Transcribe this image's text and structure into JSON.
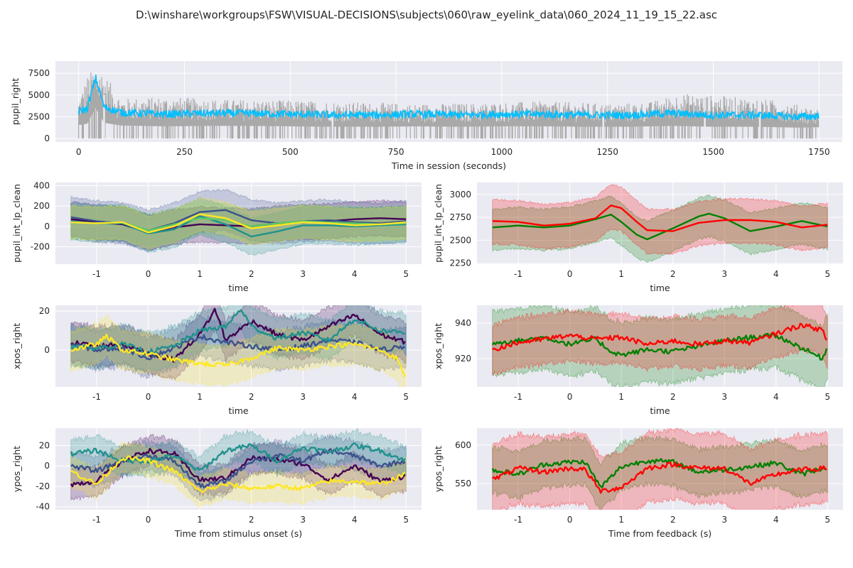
{
  "suptitle": "D:\\winshare\\workgroups\\FSW\\VISUAL-DECISIONS\\subjects\\060\\raw_eyelink_data\\060_2024_11_19_15_22.asc",
  "chart_data": [
    {
      "id": "session",
      "type": "line",
      "xlabel": "Time in session (seconds)",
      "ylabel": "pupil_right",
      "xlim": [
        -55,
        1805
      ],
      "ylim": [
        -400,
        8900
      ],
      "xticks": [
        0,
        250,
        500,
        750,
        1000,
        1250,
        1500,
        1750
      ],
      "yticks": [
        0,
        2500,
        5000,
        7500
      ],
      "grid": true,
      "series": [
        {
          "role": "raw",
          "color": "#a9a9a9",
          "x": [
            0,
            1750
          ],
          "peaks": [
            [
              0,
              4500
            ],
            [
              20,
              7200
            ],
            [
              45,
              8600
            ],
            [
              100,
              4600
            ],
            [
              200,
              4800
            ],
            [
              350,
              4500
            ],
            [
              500,
              4400
            ],
            [
              650,
              4200
            ],
            [
              800,
              4000
            ],
            [
              950,
              4100
            ],
            [
              1100,
              4300
            ],
            [
              1250,
              4000
            ],
            [
              1350,
              4200
            ],
            [
              1420,
              5200
            ],
            [
              1550,
              4800
            ],
            [
              1650,
              4400
            ],
            [
              1750,
              3400
            ]
          ],
          "dropouts": [
            60,
            600,
            1240,
            1480,
            1610
          ]
        },
        {
          "role": "smoothed",
          "color": "#00bfff",
          "x": [
            0,
            20,
            40,
            60,
            100,
            200,
            300,
            400,
            500,
            600,
            700,
            800,
            900,
            1000,
            1100,
            1200,
            1300,
            1400,
            1500,
            1600,
            1700,
            1750
          ],
          "y": [
            3100,
            3400,
            7000,
            3600,
            3000,
            2800,
            2900,
            2900,
            2800,
            2700,
            2700,
            2800,
            2700,
            2800,
            2800,
            2700,
            2700,
            2900,
            2700,
            2700,
            2500,
            2600
          ]
        }
      ]
    },
    {
      "id": "pupil_stim",
      "type": "line",
      "xlabel": "time",
      "ylabel": "pupil_int_lp_clean",
      "xlim": [
        -1.8,
        5.3
      ],
      "ylim": [
        -370,
        430
      ],
      "xticks": [
        -1,
        0,
        1,
        2,
        3,
        4,
        5
      ],
      "yticks": [
        -200,
        0,
        200,
        400
      ],
      "grid": true,
      "series": [
        {
          "color": "#440154",
          "band": 170,
          "x": [
            -1.5,
            -1,
            -0.5,
            0,
            0.5,
            1,
            1.5,
            2,
            2.5,
            3,
            3.5,
            4,
            4.5,
            5
          ],
          "y": [
            70,
            40,
            20,
            -60,
            -10,
            20,
            10,
            0,
            30,
            40,
            50,
            70,
            80,
            70
          ]
        },
        {
          "color": "#3b528b",
          "band": 200,
          "x": [
            -1.5,
            -1,
            -0.5,
            0,
            0.5,
            1,
            1.5,
            2,
            2.5,
            3,
            3.5,
            4,
            4.5,
            5
          ],
          "y": [
            90,
            50,
            30,
            -40,
            30,
            140,
            160,
            60,
            30,
            50,
            60,
            40,
            30,
            50
          ]
        },
        {
          "color": "#21918c",
          "band": 180,
          "x": [
            -1.5,
            -1,
            -0.5,
            0,
            0.5,
            1,
            1.5,
            2,
            2.5,
            3,
            3.5,
            4,
            4.5,
            5
          ],
          "y": [
            50,
            30,
            30,
            -70,
            -30,
            100,
            20,
            -100,
            -50,
            10,
            10,
            0,
            10,
            20
          ]
        },
        {
          "color": "#5ec962",
          "band": 160,
          "x": [
            -1.5,
            -1,
            -0.5,
            0,
            0.5,
            1,
            1.5,
            2,
            2.5,
            3,
            3.5,
            4,
            4.5,
            5
          ],
          "y": [
            40,
            30,
            40,
            -40,
            20,
            80,
            60,
            0,
            30,
            50,
            40,
            30,
            20,
            30
          ]
        },
        {
          "color": "#fde725",
          "band": 160,
          "x": [
            -1.5,
            -1,
            -0.5,
            0,
            0.5,
            1,
            1.5,
            2,
            2.5,
            3,
            3.5,
            4,
            4.5,
            5
          ],
          "y": [
            40,
            30,
            40,
            -60,
            0,
            120,
            80,
            -20,
            10,
            40,
            30,
            10,
            20,
            40
          ]
        }
      ]
    },
    {
      "id": "pupil_fb",
      "type": "line",
      "xlabel": "time",
      "ylabel": "pupil_int_lp_clean",
      "xlim": [
        -1.8,
        5.3
      ],
      "ylim": [
        2240,
        3130
      ],
      "xticks": [
        -1,
        0,
        1,
        2,
        3,
        4,
        5
      ],
      "yticks": [
        2250,
        2500,
        2750,
        3000
      ],
      "grid": true,
      "series": [
        {
          "color": "#008000",
          "band_lo": 250,
          "band_hi": 200,
          "x": [
            -1.5,
            -1,
            -0.5,
            0,
            0.5,
            0.8,
            1,
            1.3,
            1.5,
            2,
            2.5,
            2.7,
            3,
            3.5,
            4,
            4.5,
            5
          ],
          "y": [
            2640,
            2660,
            2640,
            2660,
            2730,
            2780,
            2700,
            2560,
            2510,
            2630,
            2760,
            2790,
            2740,
            2600,
            2650,
            2710,
            2650
          ]
        },
        {
          "color": "#ff0000",
          "band_lo": 250,
          "band_hi": 230,
          "x": [
            -1.5,
            -1,
            -0.5,
            0,
            0.5,
            0.8,
            1,
            1.3,
            1.5,
            2,
            2.5,
            3,
            3.5,
            4,
            4.5,
            5
          ],
          "y": [
            2710,
            2700,
            2660,
            2680,
            2740,
            2880,
            2850,
            2700,
            2610,
            2600,
            2690,
            2720,
            2720,
            2700,
            2640,
            2670
          ]
        }
      ]
    },
    {
      "id": "xpos_stim",
      "type": "line",
      "xlabel": "time",
      "ylabel": "xpos_right",
      "xlim": [
        -1.8,
        5.3
      ],
      "ylim": [
        -19,
        23
      ],
      "xticks": [
        -1,
        0,
        1,
        2,
        3,
        4,
        5
      ],
      "yticks": [
        0,
        20
      ],
      "grid": true,
      "series": [
        {
          "color": "#440154",
          "band": 10,
          "x": [
            -1.5,
            -1,
            -0.5,
            0,
            0.5,
            1,
            1.3,
            1.5,
            2,
            2.5,
            3,
            3.5,
            4,
            4.5,
            5
          ],
          "y": [
            4,
            2,
            3,
            -2,
            -5,
            8,
            21,
            5,
            15,
            8,
            5,
            12,
            18,
            8,
            4
          ]
        },
        {
          "color": "#3b528b",
          "band": 10,
          "x": [
            -1.5,
            -1,
            -0.5,
            0,
            0.5,
            1,
            1.5,
            2,
            2.5,
            3,
            3.5,
            4,
            4.5,
            5
          ],
          "y": [
            3,
            0,
            1,
            -4,
            1,
            7,
            4,
            2,
            0,
            2,
            5,
            4,
            0,
            2
          ]
        },
        {
          "color": "#21918c",
          "band": 10,
          "x": [
            -1.5,
            -1,
            -0.5,
            0,
            0.5,
            1,
            1.5,
            1.8,
            2,
            2.5,
            3,
            3.5,
            4,
            4.5,
            5
          ],
          "y": [
            2,
            1,
            3,
            -1,
            2,
            10,
            12,
            21,
            12,
            6,
            9,
            5,
            16,
            10,
            9
          ]
        },
        {
          "color": "#fde725",
          "band": 10,
          "x": [
            -1.5,
            -1,
            -0.8,
            -0.5,
            0,
            0.5,
            1,
            1.5,
            2,
            2.5,
            3,
            3.5,
            4,
            4.5,
            4.8,
            5
          ],
          "y": [
            0,
            3,
            7,
            0,
            -2,
            -5,
            -7,
            -8,
            -4,
            1,
            0,
            2,
            3,
            0,
            -4,
            -14
          ]
        }
      ]
    },
    {
      "id": "xpos_fb",
      "type": "line",
      "xlabel": "time",
      "ylabel": "xpos_right",
      "xlim": [
        -1.8,
        5.3
      ],
      "ylim": [
        904,
        950
      ],
      "xticks": [
        -1,
        0,
        1,
        2,
        3,
        4,
        5
      ],
      "yticks": [
        920,
        940
      ],
      "grid": true,
      "series": [
        {
          "color": "#008000",
          "band": 18,
          "x": [
            -1.5,
            -1,
            -0.5,
            0,
            0.5,
            0.8,
            1,
            1.5,
            2,
            2.5,
            3,
            3.5,
            4,
            4.5,
            4.9,
            5
          ],
          "y": [
            929,
            930,
            932,
            928,
            931,
            924,
            922,
            925,
            924,
            927,
            930,
            932,
            933,
            926,
            920,
            927
          ]
        },
        {
          "color": "#ff0000",
          "band": 14,
          "x": [
            -1.5,
            -1,
            -0.5,
            0,
            0.5,
            1,
            1.5,
            2,
            2.5,
            3,
            3.5,
            4,
            4.5,
            4.9,
            5
          ],
          "y": [
            925,
            929,
            931,
            933,
            931,
            932,
            928,
            930,
            928,
            930,
            929,
            934,
            939,
            936,
            928
          ]
        }
      ]
    },
    {
      "id": "ypos_stim",
      "type": "line",
      "xlabel": "Time from stimulus onset (s)",
      "ylabel": "ypos_right",
      "xlim": [
        -1.8,
        5.3
      ],
      "ylim": [
        -43,
        37
      ],
      "xticks": [
        -1,
        0,
        1,
        2,
        3,
        4,
        5
      ],
      "yticks": [
        -40,
        -20,
        0,
        20
      ],
      "grid": true,
      "series": [
        {
          "color": "#440154",
          "band": 14,
          "x": [
            -1.5,
            -1,
            -0.5,
            0,
            0.5,
            1,
            1.5,
            2,
            2.5,
            3,
            3.5,
            4,
            4.5,
            5
          ],
          "y": [
            -18,
            -15,
            5,
            15,
            12,
            -14,
            -12,
            8,
            6,
            2,
            -14,
            0,
            -15,
            -10
          ]
        },
        {
          "color": "#3b528b",
          "band": 14,
          "x": [
            -1.5,
            -1,
            -0.5,
            0,
            0.5,
            1,
            1.5,
            2,
            2.5,
            3,
            3.5,
            4,
            4.5,
            5
          ],
          "y": [
            0,
            -5,
            5,
            10,
            5,
            -20,
            -15,
            5,
            10,
            5,
            15,
            10,
            0,
            5
          ]
        },
        {
          "color": "#21918c",
          "band": 14,
          "x": [
            -1.5,
            -1,
            -0.5,
            0,
            0.5,
            1,
            1.5,
            2,
            2.5,
            3,
            3.5,
            4,
            4.5,
            5
          ],
          "y": [
            12,
            15,
            5,
            5,
            10,
            -5,
            15,
            20,
            5,
            18,
            14,
            20,
            15,
            5
          ]
        },
        {
          "color": "#fde725",
          "band": 14,
          "x": [
            -1.5,
            -1,
            -0.5,
            0,
            0.5,
            1,
            1.5,
            2,
            2.5,
            3,
            3.5,
            4,
            4.5,
            5
          ],
          "y": [
            -5,
            -18,
            8,
            5,
            -5,
            -25,
            -18,
            -22,
            -20,
            -22,
            -15,
            -15,
            -18,
            -8
          ]
        }
      ]
    },
    {
      "id": "ypos_fb",
      "type": "line",
      "xlabel": "Time from feedback (s)",
      "ylabel": "ypos_right",
      "xlim": [
        -1.8,
        5.3
      ],
      "ylim": [
        516,
        622
      ],
      "xticks": [
        -1,
        0,
        1,
        2,
        3,
        4,
        5
      ],
      "yticks": [
        550,
        600
      ],
      "grid": true,
      "series": [
        {
          "color": "#008000",
          "band": 30,
          "x": [
            -1.5,
            -1,
            -0.5,
            0,
            0.3,
            0.6,
            1,
            1.5,
            2,
            2.5,
            3,
            3.5,
            4,
            4.5,
            5
          ],
          "y": [
            568,
            562,
            575,
            578,
            578,
            545,
            572,
            580,
            578,
            565,
            568,
            572,
            577,
            562,
            572
          ]
        },
        {
          "color": "#ff0000",
          "band": 45,
          "x": [
            -1.5,
            -1,
            -0.5,
            0,
            0.3,
            0.6,
            1,
            1.5,
            2,
            2.5,
            3,
            3.5,
            4,
            4.5,
            5
          ],
          "y": [
            555,
            570,
            565,
            570,
            568,
            540,
            545,
            570,
            575,
            570,
            570,
            550,
            562,
            568,
            570
          ]
        }
      ]
    }
  ]
}
